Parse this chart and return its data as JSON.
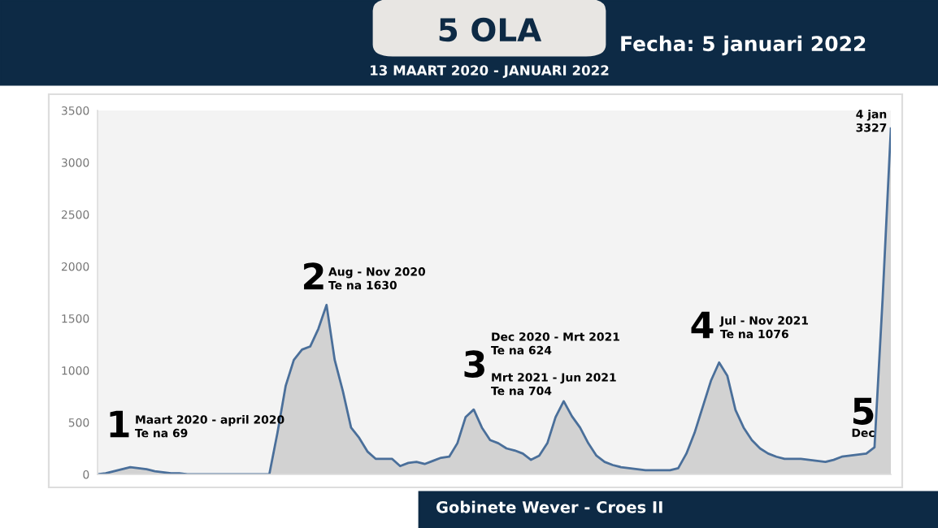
{
  "chart_data": {
    "type": "area",
    "title": "5 OLA",
    "subtitle": "13 MAART 2020 - JANUARI 2022",
    "categories": [
      null,
      null,
      null,
      null,
      null,
      null,
      null,
      null,
      null,
      null,
      null,
      null,
      null,
      null,
      null,
      null,
      null,
      null,
      null,
      null,
      null,
      null,
      null,
      null,
      null,
      null,
      null,
      null,
      null,
      null,
      null,
      null,
      null,
      null,
      null,
      null,
      null,
      null,
      null,
      null,
      null,
      null,
      null,
      null,
      null,
      null,
      null,
      null,
      null,
      null,
      null,
      null,
      null,
      null,
      null,
      null,
      null,
      null,
      null,
      null,
      null,
      null,
      null,
      null,
      null,
      null,
      null,
      null,
      null,
      null,
      null,
      null,
      null,
      null,
      null,
      null,
      null,
      null,
      null,
      null,
      null,
      null,
      null,
      null,
      null,
      null,
      null,
      null,
      null,
      null,
      null,
      null,
      null,
      null,
      null,
      null,
      null,
      null
    ],
    "series": [
      {
        "color": "#4a6f9a",
        "values": [
          0,
          10,
          30,
          50,
          69,
          60,
          50,
          30,
          20,
          10,
          10,
          0,
          0,
          0,
          0,
          0,
          0,
          0,
          0,
          0,
          0,
          0,
          400,
          850,
          1100,
          1200,
          1230,
          1400,
          1630,
          1100,
          800,
          450,
          350,
          220,
          150,
          150,
          150,
          80,
          110,
          120,
          100,
          130,
          160,
          170,
          300,
          550,
          624,
          450,
          330,
          300,
          250,
          230,
          200,
          140,
          180,
          300,
          550,
          704,
          560,
          450,
          300,
          180,
          120,
          90,
          70,
          60,
          50,
          40,
          40,
          40,
          40,
          60,
          200,
          400,
          650,
          900,
          1076,
          950,
          620,
          450,
          330,
          250,
          200,
          170,
          150,
          150,
          150,
          140,
          130,
          120,
          140,
          170,
          180,
          190,
          200,
          260,
          1700,
          3327
        ]
      }
    ],
    "ylim": [
      0,
      3500
    ],
    "yticks": [
      0,
      500,
      1000,
      1500,
      2000,
      2500,
      3000,
      3500
    ],
    "grid": false,
    "legend": false,
    "annotations": [
      "1",
      "Maart 2020 - april 2020\nTe na 69",
      "2",
      "Aug - Nov 2020\nTe na 1630",
      "3",
      "Dec 2020 - Mrt 2021\nTe na 624",
      "Mrt 2021 - Jun 2021\nTe na 704",
      "4",
      "Jul - Nov 2021\nTe na 1076",
      "4 jan\n3327",
      "5",
      "Dec",
      "Fecha: 5 januari 2022",
      "Gobinete Wever - Croes II"
    ]
  }
}
